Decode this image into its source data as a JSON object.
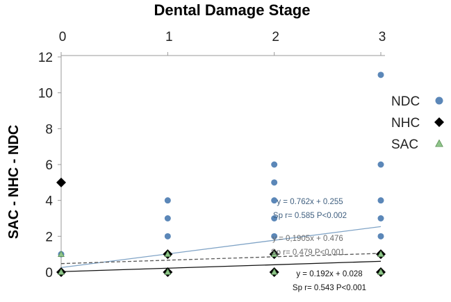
{
  "chart_data": {
    "type": "scatter",
    "title": "Dental Damage Stage",
    "ylabel": "SAC - NHC - NDC",
    "xlabel": "",
    "x_ticks": [
      "0",
      "1",
      "2",
      "3"
    ],
    "y_ticks": [
      "0",
      "2",
      "4",
      "6",
      "8",
      "10",
      "12"
    ],
    "xlim": [
      0,
      3
    ],
    "ylim": [
      0,
      12
    ],
    "x_axis_position": "top",
    "grid": false,
    "legend_position": "right",
    "series": [
      {
        "name": "NDC",
        "marker": "circle",
        "color": "#5b87b8",
        "points": [
          [
            0,
            1
          ],
          [
            1,
            2
          ],
          [
            1,
            3
          ],
          [
            1,
            4
          ],
          [
            2,
            2
          ],
          [
            2,
            3
          ],
          [
            2,
            4
          ],
          [
            2,
            5
          ],
          [
            2,
            6
          ],
          [
            3,
            2
          ],
          [
            3,
            3
          ],
          [
            3,
            4
          ],
          [
            3,
            6
          ],
          [
            3,
            11
          ]
        ]
      },
      {
        "name": "NHC",
        "marker": "diamond",
        "color": "#000000",
        "points": [
          [
            0,
            0
          ],
          [
            0,
            5
          ],
          [
            1,
            0
          ],
          [
            1,
            1
          ],
          [
            2,
            0
          ],
          [
            2,
            1
          ],
          [
            3,
            0
          ],
          [
            3,
            1
          ]
        ]
      },
      {
        "name": "SAC",
        "marker": "triangle",
        "color": "#8fc58a",
        "points": [
          [
            0,
            0
          ],
          [
            0,
            1
          ],
          [
            1,
            0
          ],
          [
            1,
            1
          ],
          [
            2,
            0
          ],
          [
            2,
            1
          ],
          [
            3,
            0
          ],
          [
            3,
            1
          ]
        ]
      }
    ],
    "trendlines": [
      {
        "series": "NDC",
        "slope": 0.762,
        "intercept": 0.255,
        "style": "solid",
        "color": "#7fa3c6"
      },
      {
        "series": "SAC",
        "slope": 0.1905,
        "intercept": 0.476,
        "style": "dashed",
        "color": "#555555"
      },
      {
        "series": "NHC",
        "slope": 0.192,
        "intercept": 0.028,
        "style": "solid",
        "color": "#111111"
      }
    ],
    "annotations": [
      {
        "series": "NDC",
        "equation": "y = 0.762x + 0.255",
        "stats": "Sp r= 0.585 P<0.002"
      },
      {
        "series": "SAC",
        "equation": "y = 0,1905x + 0.476",
        "stats": "Sp r= 0.479 P<0.001"
      },
      {
        "series": "NHC",
        "equation": "y = 0.192x + 0.028",
        "stats": "Sp r= 0.543 P<0.001"
      }
    ]
  }
}
